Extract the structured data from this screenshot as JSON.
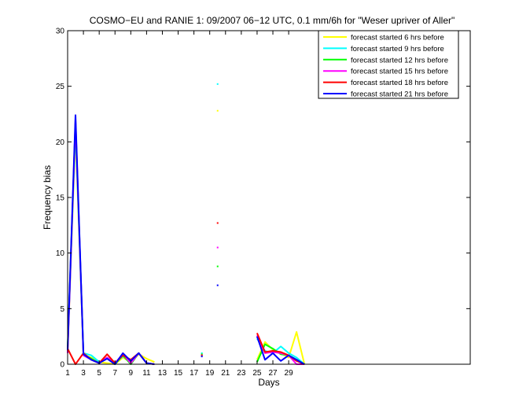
{
  "chart_data": {
    "type": "line",
    "title": "COSMO−EU and RANIE 1: 09/2007 06−12 UTC, 0.1 mm/6h for \"Weser upriver of Aller\"",
    "xlabel": "Days",
    "ylabel": "Frequency bias",
    "xlim": [
      1,
      52
    ],
    "ylim": [
      0,
      30
    ],
    "x_ticks": [
      1,
      3,
      5,
      7,
      9,
      11,
      13,
      15,
      17,
      19,
      21,
      23,
      25,
      27,
      29
    ],
    "y_ticks": [
      0,
      5,
      10,
      15,
      20,
      25,
      30
    ],
    "grid": false,
    "legend_position": "top-right",
    "series": [
      {
        "name": "forecast started 6 hrs before",
        "color": "#ffff00",
        "values": [
          [
            1,
            1.2
          ],
          [
            2,
            20.8
          ],
          [
            3,
            0.8
          ],
          [
            4,
            0.6
          ],
          [
            5,
            0.2
          ],
          [
            6,
            0.1
          ],
          [
            7,
            0.0
          ],
          [
            8,
            0.6
          ],
          [
            9,
            0.2
          ],
          [
            10,
            0.9
          ],
          [
            11,
            0.5
          ],
          [
            12,
            0.2
          ],
          null,
          [
            18,
            0.8
          ],
          null,
          [
            20,
            22.8
          ],
          null,
          [
            25,
            0.4
          ],
          [
            26,
            2.0
          ],
          [
            27,
            1.3
          ],
          [
            28,
            1.0
          ],
          [
            29,
            0.6
          ],
          [
            30,
            2.9
          ],
          [
            31,
            0.0
          ]
        ]
      },
      {
        "name": "forecast started 9 hrs before",
        "color": "#00ffff",
        "values": [
          [
            1,
            1.5
          ],
          [
            2,
            21.3
          ],
          [
            3,
            1.0
          ],
          [
            4,
            0.8
          ],
          [
            5,
            0.2
          ],
          [
            6,
            0.5
          ],
          [
            7,
            0.1
          ],
          [
            8,
            0.7
          ],
          [
            9,
            0.3
          ],
          [
            10,
            1.0
          ],
          [
            11,
            0.1
          ],
          [
            12,
            0.0
          ],
          null,
          [
            18,
            1.0
          ],
          null,
          [
            20,
            25.2
          ],
          null,
          [
            25,
            2.3
          ],
          [
            26,
            1.2
          ],
          [
            27,
            1.0
          ],
          [
            28,
            1.6
          ],
          [
            29,
            1.0
          ],
          [
            30,
            0.6
          ],
          [
            31,
            0.0
          ]
        ]
      },
      {
        "name": "forecast started 12 hrs before",
        "color": "#00ff00",
        "values": [
          [
            1,
            1.3
          ],
          [
            2,
            21.8
          ],
          [
            3,
            0.9
          ],
          [
            4,
            0.5
          ],
          [
            5,
            0.1
          ],
          [
            6,
            0.6
          ],
          [
            7,
            0.0
          ],
          [
            8,
            0.8
          ],
          [
            9,
            0.0
          ],
          [
            10,
            1.0
          ],
          [
            11,
            0.1
          ],
          [
            12,
            0.0
          ],
          null,
          [
            18,
            0.9
          ],
          null,
          [
            20,
            8.8
          ],
          null,
          [
            25,
            0.2
          ],
          [
            26,
            1.8
          ],
          [
            27,
            1.4
          ],
          [
            28,
            0.9
          ],
          [
            29,
            0.8
          ],
          [
            30,
            0.4
          ],
          [
            31,
            0.0
          ]
        ]
      },
      {
        "name": "forecast started 15 hrs before",
        "color": "#ff00ff",
        "values": [
          [
            1,
            1.0
          ],
          [
            2,
            22.0
          ],
          [
            3,
            0.8
          ],
          [
            4,
            0.4
          ],
          [
            5,
            0.1
          ],
          [
            6,
            0.6
          ],
          [
            7,
            0.1
          ],
          [
            8,
            0.9
          ],
          [
            9,
            0.1
          ],
          [
            10,
            1.0
          ],
          [
            11,
            0.1
          ],
          [
            12,
            0.0
          ],
          null,
          [
            18,
            0.8
          ],
          null,
          [
            20,
            10.5
          ],
          null,
          [
            25,
            2.6
          ],
          [
            26,
            1.0
          ],
          [
            27,
            1.1
          ],
          [
            28,
            1.0
          ],
          [
            29,
            0.8
          ],
          [
            30,
            0.0
          ],
          [
            31,
            0.0
          ]
        ]
      },
      {
        "name": "forecast started 18 hrs before",
        "color": "#ff0000",
        "values": [
          [
            1,
            1.4
          ],
          [
            2,
            0.0
          ],
          [
            3,
            1.0
          ],
          [
            4,
            0.4
          ],
          [
            5,
            0.1
          ],
          [
            6,
            0.9
          ],
          [
            7,
            0.1
          ],
          [
            8,
            0.8
          ],
          [
            9,
            0.4
          ],
          [
            10,
            1.0
          ],
          [
            11,
            0.1
          ],
          [
            12,
            0.0
          ],
          null,
          [
            18,
            0.8
          ],
          null,
          [
            20,
            12.7
          ],
          null,
          [
            25,
            2.8
          ],
          [
            26,
            1.1
          ],
          [
            27,
            1.2
          ],
          [
            28,
            1.1
          ],
          [
            29,
            0.8
          ],
          [
            30,
            0.3
          ],
          [
            31,
            0.0
          ]
        ]
      },
      {
        "name": "forecast started 21 hrs before",
        "color": "#0000ff",
        "values": [
          [
            1,
            1.3
          ],
          [
            2,
            22.4
          ],
          [
            3,
            0.9
          ],
          [
            4,
            0.4
          ],
          [
            5,
            0.1
          ],
          [
            6,
            0.5
          ],
          [
            7,
            0.0
          ],
          [
            8,
            1.0
          ],
          [
            9,
            0.3
          ],
          [
            10,
            1.0
          ],
          [
            11,
            0.1
          ],
          [
            12,
            0.0
          ],
          null,
          [
            18,
            0.7
          ],
          null,
          [
            20,
            7.1
          ],
          null,
          [
            25,
            2.5
          ],
          [
            26,
            0.4
          ],
          [
            27,
            1.0
          ],
          [
            28,
            0.3
          ],
          [
            29,
            0.8
          ],
          [
            30,
            0.4
          ],
          [
            31,
            0.0
          ]
        ]
      }
    ]
  }
}
